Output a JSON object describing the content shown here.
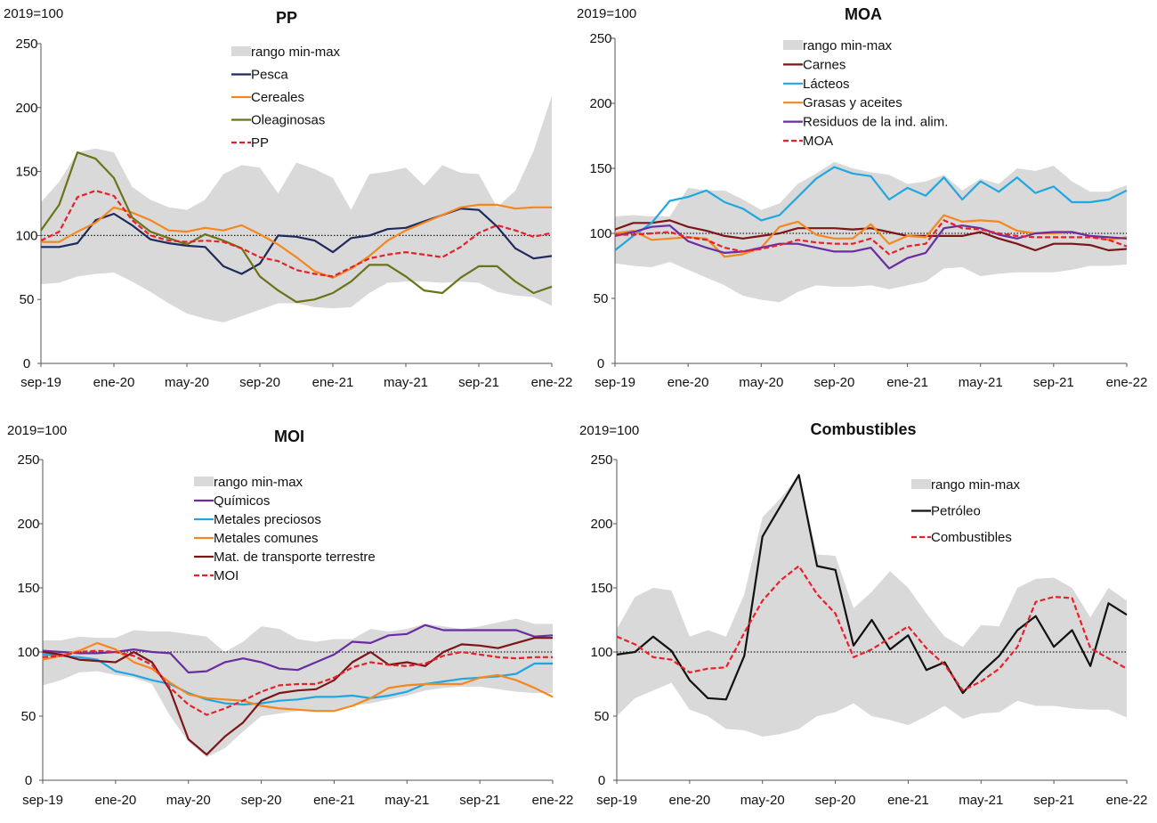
{
  "figure": {
    "xtick_labels": [
      "sep-19",
      "ene-20",
      "may-20",
      "sep-20",
      "ene-21",
      "may-21",
      "sep-21",
      "ene-22"
    ],
    "ytick_labels": [
      "0",
      "50",
      "100",
      "150",
      "200",
      "250"
    ]
  },
  "chart_data": [
    {
      "type": "line",
      "title": "PP",
      "ylabel": "2019=100",
      "x": [
        "sep-19",
        "oct-19",
        "nov-19",
        "dic-19",
        "ene-20",
        "feb-20",
        "mar-20",
        "abr-20",
        "may-20",
        "jun-20",
        "jul-20",
        "ago-20",
        "sep-20",
        "oct-20",
        "nov-20",
        "dic-20",
        "ene-21",
        "feb-21",
        "mar-21",
        "abr-21",
        "may-21",
        "jun-21",
        "jul-21",
        "ago-21",
        "sep-21",
        "oct-21",
        "nov-21",
        "dic-21",
        "ene-22"
      ],
      "ylim": [
        0,
        250
      ],
      "reference_line": 100,
      "band": {
        "name": "rango min-max",
        "color": "#d9d9d9",
        "lower": [
          62,
          63,
          68,
          70,
          71,
          64,
          56,
          47,
          39,
          35,
          32,
          37,
          42,
          47,
          47,
          44,
          43,
          44,
          55,
          63,
          64,
          64,
          63,
          64,
          63,
          56,
          53,
          52,
          45
        ],
        "upper": [
          126,
          142,
          165,
          168,
          165,
          138,
          128,
          122,
          120,
          128,
          148,
          155,
          153,
          133,
          157,
          152,
          145,
          120,
          148,
          150,
          153,
          139,
          155,
          149,
          148,
          122,
          135,
          166,
          209
        ]
      },
      "series": [
        {
          "name": "Pesca",
          "color": "#1f2a5c",
          "dash": false,
          "values": [
            91,
            91,
            94,
            112,
            117,
            108,
            97,
            94,
            92,
            91,
            76,
            70,
            78,
            100,
            99,
            96,
            87,
            98,
            100,
            105,
            106,
            111,
            116,
            121,
            120,
            107,
            90,
            82,
            84
          ]
        },
        {
          "name": "Cereales",
          "color": "#f5871f",
          "dash": false,
          "values": [
            95,
            95,
            103,
            110,
            122,
            118,
            112,
            104,
            103,
            106,
            104,
            108,
            101,
            93,
            83,
            72,
            67,
            74,
            84,
            96,
            104,
            110,
            116,
            122,
            124,
            124,
            121,
            122,
            122
          ]
        },
        {
          "name": "Oleaginosas",
          "color": "#6b7318",
          "dash": false,
          "values": [
            104,
            124,
            165,
            160,
            145,
            114,
            103,
            98,
            93,
            101,
            96,
            90,
            68,
            57,
            48,
            50,
            55,
            64,
            77,
            77,
            68,
            57,
            55,
            67,
            76,
            76,
            64,
            55,
            60
          ]
        },
        {
          "name": "PP",
          "color": "#e8202a",
          "dash": true,
          "values": [
            96,
            103,
            130,
            135,
            131,
            112,
            100,
            96,
            95,
            96,
            95,
            90,
            83,
            80,
            73,
            70,
            68,
            75,
            82,
            85,
            87,
            85,
            83,
            91,
            102,
            108,
            104,
            99,
            102
          ]
        }
      ]
    },
    {
      "type": "line",
      "title": "MOA",
      "ylabel": "2019=100",
      "x": [
        "sep-19",
        "oct-19",
        "nov-19",
        "dic-19",
        "ene-20",
        "feb-20",
        "mar-20",
        "abr-20",
        "may-20",
        "jun-20",
        "jul-20",
        "ago-20",
        "sep-20",
        "oct-20",
        "nov-20",
        "dic-20",
        "ene-21",
        "feb-21",
        "mar-21",
        "abr-21",
        "may-21",
        "jun-21",
        "jul-21",
        "ago-21",
        "sep-21",
        "oct-21",
        "nov-21",
        "dic-21",
        "ene-22"
      ],
      "ylim": [
        0,
        250
      ],
      "reference_line": 100,
      "band": {
        "name": "rango min-max",
        "color": "#d9d9d9",
        "lower": [
          77,
          75,
          74,
          78,
          72,
          66,
          60,
          52,
          49,
          47,
          55,
          60,
          59,
          59,
          60,
          57,
          60,
          63,
          73,
          74,
          67,
          69,
          70,
          70,
          70,
          72,
          75,
          75,
          76
        ],
        "upper": [
          113,
          114,
          113,
          113,
          135,
          133,
          133,
          126,
          118,
          123,
          138,
          146,
          155,
          150,
          147,
          145,
          138,
          140,
          145,
          133,
          142,
          138,
          150,
          148,
          152,
          140,
          132,
          132,
          137
        ]
      },
      "series": [
        {
          "name": "Carnes",
          "color": "#7b1518",
          "dash": false,
          "values": [
            103,
            108,
            108,
            110,
            105,
            102,
            98,
            96,
            98,
            100,
            104,
            104,
            104,
            103,
            104,
            101,
            98,
            98,
            98,
            98,
            101,
            96,
            92,
            87,
            92,
            92,
            91,
            87,
            88
          ]
        },
        {
          "name": "Lácteos",
          "color": "#1ea7e1",
          "dash": false,
          "values": [
            87,
            98,
            108,
            125,
            128,
            133,
            124,
            119,
            110,
            114,
            128,
            142,
            151,
            146,
            144,
            126,
            135,
            129,
            143,
            126,
            140,
            132,
            143,
            131,
            136,
            124,
            124,
            126,
            133
          ]
        },
        {
          "name": "Grasas y aceites",
          "color": "#f5871f",
          "dash": false,
          "values": [
            100,
            102,
            95,
            96,
            97,
            96,
            82,
            84,
            89,
            105,
            109,
            99,
            96,
            96,
            107,
            92,
            98,
            97,
            114,
            109,
            110,
            109,
            102,
            100,
            100,
            101,
            98,
            95,
            97
          ]
        },
        {
          "name": "Residuos de la ind. alim.",
          "color": "#6a2ca0",
          "dash": false,
          "values": [
            98,
            101,
            105,
            106,
            94,
            89,
            85,
            86,
            89,
            92,
            92,
            89,
            86,
            86,
            89,
            73,
            81,
            85,
            104,
            106,
            104,
            99,
            96,
            100,
            101,
            101,
            98,
            97,
            96
          ]
        },
        {
          "name": "MOA",
          "color": "#e8202a",
          "dash": true,
          "values": [
            99,
            99,
            100,
            101,
            97,
            95,
            89,
            86,
            88,
            91,
            95,
            93,
            92,
            92,
            96,
            84,
            90,
            92,
            110,
            104,
            103,
            100,
            98,
            97,
            97,
            97,
            97,
            95,
            90
          ]
        }
      ]
    },
    {
      "type": "line",
      "title": "MOI",
      "ylabel": "2019=100",
      "x": [
        "sep-19",
        "oct-19",
        "nov-19",
        "dic-19",
        "ene-20",
        "feb-20",
        "mar-20",
        "abr-20",
        "may-20",
        "jun-20",
        "jul-20",
        "ago-20",
        "sep-20",
        "oct-20",
        "nov-20",
        "dic-20",
        "ene-21",
        "feb-21",
        "mar-21",
        "abr-21",
        "may-21",
        "jun-21",
        "jul-21",
        "ago-21",
        "sep-21",
        "oct-21",
        "nov-21",
        "dic-21",
        "ene-22"
      ],
      "ylim": [
        0,
        250
      ],
      "reference_line": 100,
      "band": {
        "name": "rango min-max",
        "color": "#d9d9d9",
        "lower": [
          74,
          78,
          84,
          85,
          82,
          80,
          75,
          50,
          30,
          18,
          25,
          38,
          50,
          52,
          54,
          54,
          55,
          58,
          60,
          63,
          66,
          70,
          72,
          73,
          73,
          71,
          69,
          68,
          68
        ],
        "upper": [
          109,
          109,
          112,
          111,
          111,
          117,
          116,
          116,
          114,
          112,
          100,
          108,
          120,
          118,
          110,
          108,
          110,
          110,
          118,
          116,
          118,
          122,
          120,
          118,
          120,
          123,
          126,
          122,
          122
        ]
      },
      "series": [
        {
          "name": "Químicos",
          "color": "#6a2ca0",
          "dash": false,
          "values": [
            101,
            100,
            99,
            99,
            100,
            102,
            100,
            99,
            84,
            85,
            92,
            95,
            92,
            87,
            86,
            92,
            98,
            108,
            107,
            113,
            114,
            121,
            117,
            117,
            117,
            117,
            117,
            112,
            113
          ]
        },
        {
          "name": "Metales preciosos",
          "color": "#1ea7e1",
          "dash": false,
          "values": [
            98,
            97,
            96,
            94,
            85,
            82,
            78,
            75,
            68,
            63,
            60,
            59,
            60,
            62,
            63,
            65,
            65,
            66,
            64,
            66,
            69,
            75,
            77,
            79,
            80,
            81,
            83,
            91,
            91
          ]
        },
        {
          "name": "Metales comunes",
          "color": "#f5871f",
          "dash": false,
          "values": [
            94,
            97,
            101,
            107,
            102,
            92,
            87,
            76,
            67,
            64,
            63,
            62,
            58,
            56,
            55,
            54,
            54,
            58,
            64,
            72,
            74,
            75,
            75,
            75,
            80,
            82,
            78,
            72,
            65
          ]
        },
        {
          "name": "Mat. de transporte terrestre",
          "color": "#7b1518",
          "dash": false,
          "values": [
            100,
            98,
            94,
            93,
            92,
            100,
            92,
            70,
            32,
            20,
            34,
            45,
            62,
            68,
            70,
            71,
            78,
            92,
            100,
            90,
            92,
            89,
            100,
            106,
            105,
            103,
            107,
            111,
            111
          ]
        },
        {
          "name": "MOI",
          "color": "#e8202a",
          "dash": true,
          "values": [
            96,
            97,
            100,
            101,
            100,
            97,
            90,
            72,
            59,
            51,
            56,
            62,
            69,
            74,
            75,
            75,
            80,
            88,
            92,
            90,
            89,
            91,
            97,
            100,
            98,
            96,
            95,
            96,
            96
          ]
        }
      ]
    },
    {
      "type": "line",
      "title": "Combustibles",
      "ylabel": "2019=100",
      "x": [
        "sep-19",
        "oct-19",
        "nov-19",
        "dic-19",
        "ene-20",
        "feb-20",
        "mar-20",
        "abr-20",
        "may-20",
        "jun-20",
        "jul-20",
        "ago-20",
        "sep-20",
        "oct-20",
        "nov-20",
        "dic-20",
        "ene-21",
        "feb-21",
        "mar-21",
        "abr-21",
        "may-21",
        "jun-21",
        "jul-21",
        "ago-21",
        "sep-21",
        "oct-21",
        "nov-21",
        "dic-21",
        "ene-22"
      ],
      "ylim": [
        0,
        250
      ],
      "reference_line": 100,
      "band": {
        "name": "rango min-max",
        "color": "#d9d9d9",
        "lower": [
          50,
          64,
          70,
          76,
          55,
          50,
          40,
          39,
          34,
          36,
          40,
          50,
          53,
          60,
          50,
          47,
          43,
          50,
          58,
          48,
          52,
          53,
          62,
          58,
          58,
          56,
          55,
          55,
          49
        ],
        "upper": [
          118,
          143,
          150,
          148,
          112,
          117,
          112,
          145,
          205,
          220,
          238,
          176,
          175,
          134,
          147,
          163,
          150,
          130,
          112,
          104,
          121,
          120,
          150,
          157,
          158,
          150,
          127,
          150,
          140
        ]
      },
      "series": [
        {
          "name": "Petróleo",
          "color": "#111111",
          "dash": false,
          "values": [
            98,
            100,
            112,
            101,
            78,
            64,
            63,
            97,
            190,
            214,
            238,
            167,
            164,
            105,
            125,
            102,
            113,
            86,
            92,
            68,
            84,
            97,
            117,
            128,
            104,
            117,
            89,
            138,
            129
          ]
        },
        {
          "name": "Combustibles",
          "color": "#e8202a",
          "dash": true,
          "values": [
            112,
            106,
            96,
            94,
            84,
            87,
            88,
            115,
            140,
            156,
            167,
            145,
            130,
            96,
            102,
            111,
            120,
            103,
            90,
            70,
            77,
            87,
            104,
            139,
            143,
            142,
            103,
            95,
            87
          ]
        }
      ]
    }
  ]
}
